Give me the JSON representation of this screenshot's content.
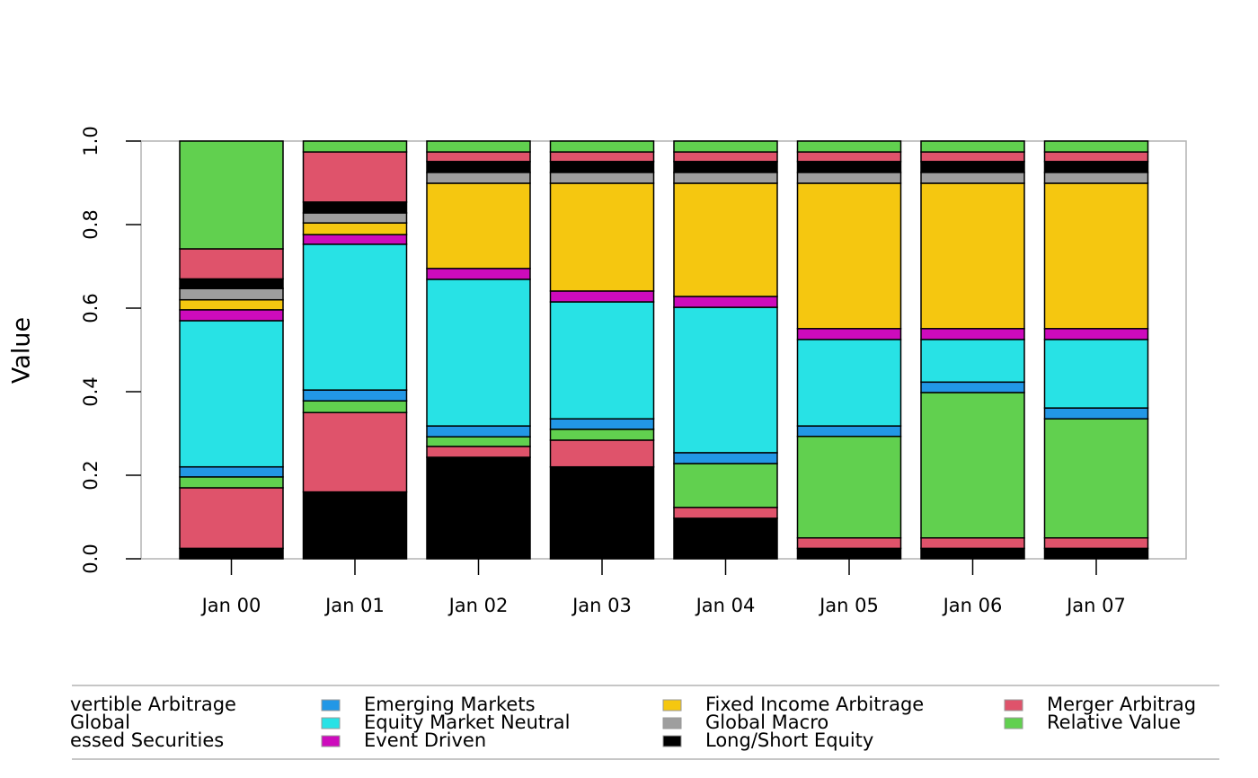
{
  "chart_data": {
    "type": "stacked-bar",
    "y_label": "Value",
    "categories": [
      "Jan 00",
      "Jan 01",
      "Jan 02",
      "Jan 03",
      "Jan 04",
      "Jan 05",
      "Jan 06",
      "Jan 07"
    ],
    "ylim": [
      0,
      1
    ],
    "yticks": [
      {
        "value": 0,
        "label": "0.0"
      },
      0.2,
      0.4,
      0.6,
      0.8,
      {
        "value": 1,
        "label": "1.0"
      }
    ],
    "series": [
      {
        "name": "vertible Arbitrage",
        "color": "#000000",
        "values": [
          0.025,
          0.16,
          0.243,
          0.22,
          0.097,
          0.025,
          0.025,
          0.025
        ]
      },
      {
        "name": "Global",
        "color": "#DF536B",
        "values": [
          0.145,
          0.19,
          0.026,
          0.064,
          0.026,
          0.025,
          0.025,
          0.025
        ]
      },
      {
        "name": "essed Securities",
        "color": "#61D04F",
        "values": [
          0.026,
          0.028,
          0.023,
          0.026,
          0.105,
          0.243,
          0.348,
          0.285
        ]
      },
      {
        "name": "Emerging Markets",
        "color": "#2297E6",
        "values": [
          0.024,
          0.026,
          0.026,
          0.025,
          0.026,
          0.025,
          0.025,
          0.026
        ]
      },
      {
        "name": "Equity Market Neutral",
        "color": "#28E2E5",
        "values": [
          0.35,
          0.349,
          0.351,
          0.28,
          0.348,
          0.207,
          0.102,
          0.164
        ]
      },
      {
        "name": "Event Driven",
        "color": "#CD0BBC",
        "values": [
          0.026,
          0.023,
          0.026,
          0.026,
          0.026,
          0.026,
          0.026,
          0.026
        ]
      },
      {
        "name": "Fixed Income Arbitrage",
        "color": "#F5C710",
        "values": [
          0.024,
          0.028,
          0.204,
          0.258,
          0.271,
          0.348,
          0.348,
          0.348
        ]
      },
      {
        "name": "Global Macro",
        "color": "#9E9E9E",
        "values": [
          0.027,
          0.024,
          0.026,
          0.026,
          0.026,
          0.026,
          0.026,
          0.026
        ]
      },
      {
        "name": "Long/Short Equity",
        "color": "#000000",
        "values": [
          0.023,
          0.026,
          0.026,
          0.026,
          0.026,
          0.026,
          0.026,
          0.026
        ]
      },
      {
        "name": "Merger Arbitrag",
        "color": "#DF536B",
        "values": [
          0.072,
          0.12,
          0.023,
          0.023,
          0.023,
          0.023,
          0.023,
          0.023
        ]
      },
      {
        "name": "Relative Value",
        "color": "#61D04F",
        "values": [
          0.258,
          0.026,
          0.026,
          0.026,
          0.026,
          0.026,
          0.026,
          0.026
        ]
      }
    ]
  }
}
